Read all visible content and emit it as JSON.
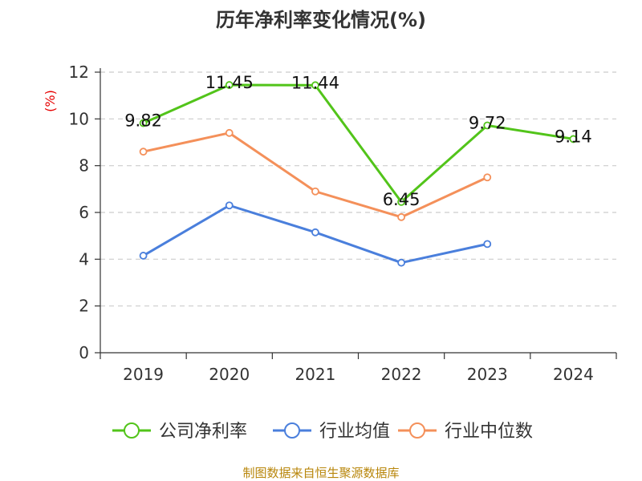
{
  "chart_data": {
    "type": "line",
    "title": "历年净利率变化情况(%)",
    "ylabel": "(%)",
    "xlabel": "",
    "categories": [
      "2019",
      "2020",
      "2021",
      "2022",
      "2023",
      "2024"
    ],
    "ylim": [
      0,
      12
    ],
    "yticks": [
      "0",
      "2",
      "4",
      "6",
      "8",
      "10",
      "12"
    ],
    "grid": true,
    "legend_position": "bottom",
    "series": [
      {
        "name": "公司净利率",
        "color": "#52c41a",
        "values": [
          9.82,
          11.45,
          11.44,
          6.45,
          9.72,
          9.14
        ],
        "labels": [
          "9.82",
          "11.45",
          "11.44",
          "6.45",
          "9.72",
          "9.14"
        ]
      },
      {
        "name": "行业均值",
        "color": "#4a7fdc",
        "values": [
          4.15,
          6.3,
          5.15,
          3.85,
          4.65,
          null
        ]
      },
      {
        "name": "行业中位数",
        "color": "#f4905a",
        "values": [
          8.6,
          9.4,
          6.9,
          5.8,
          7.5,
          null
        ]
      }
    ]
  },
  "source": "制图数据来自恒生聚源数据库"
}
